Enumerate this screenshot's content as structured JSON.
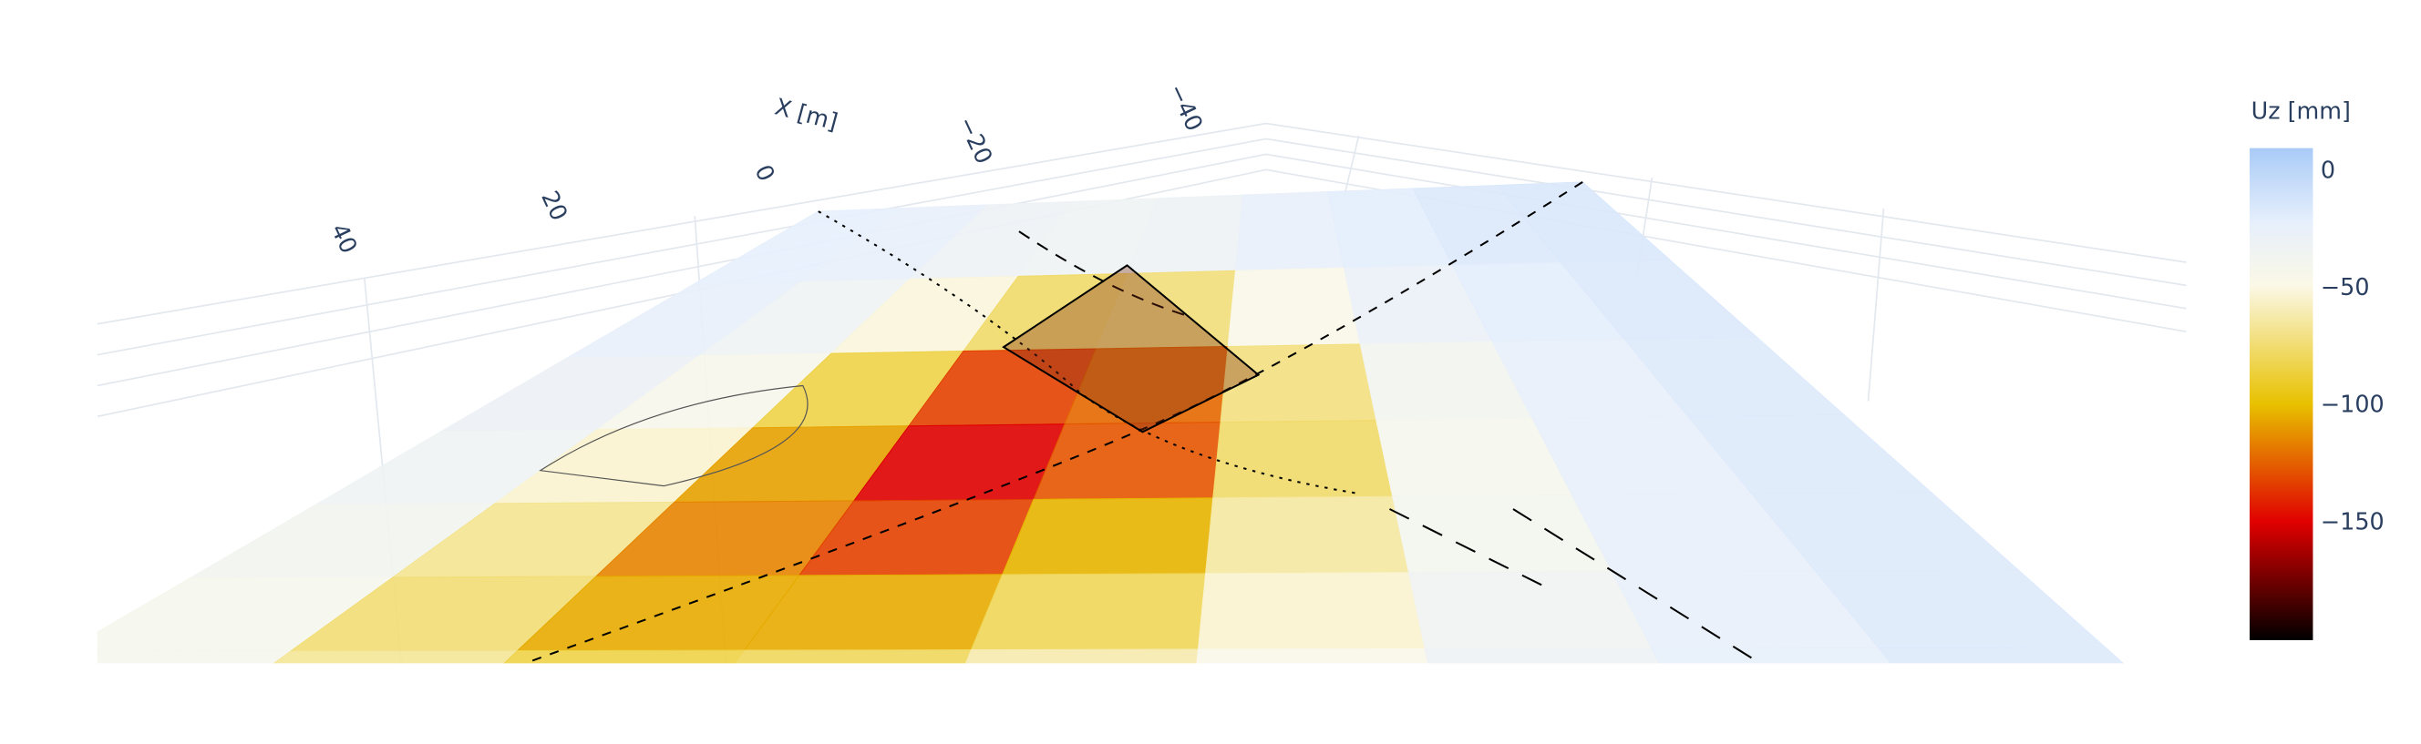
{
  "chart_data": {
    "type": "surface",
    "xaxis_title": "X [m]",
    "xticks": [
      40,
      20,
      0,
      {
        "value": -20,
        "label": "−20"
      },
      {
        "value": -40,
        "label": "−40"
      }
    ],
    "colorbar_title": "Uz [mm]",
    "colorbar_ticks": [
      0,
      {
        "value": -50,
        "label": "−50"
      },
      {
        "value": -100,
        "label": "−100"
      },
      {
        "value": -150,
        "label": "−150"
      }
    ],
    "cmin": -200,
    "cmax": 10,
    "colorscale": [
      [
        0,
        "#000000"
      ],
      [
        0.24,
        "#e00000"
      ],
      [
        0.48,
        "#e8c100"
      ],
      [
        0.72,
        "#fbf8e6"
      ],
      [
        0.85,
        "#e6effc"
      ],
      [
        1,
        "#a9cbf7"
      ]
    ],
    "z": [
      [
        -20,
        -20,
        -25,
        -25,
        -20,
        -20,
        -20,
        -15,
        -15,
        -15
      ],
      [
        -20,
        -25,
        -30,
        -40,
        -45,
        -35,
        -25,
        -20,
        -15,
        -15
      ],
      [
        -25,
        -30,
        -45,
        -90,
        -130,
        -80,
        -40,
        -25,
        -20,
        -15
      ],
      [
        -25,
        -35,
        -60,
        -140,
        -170,
        -110,
        -55,
        -30,
        -20,
        -15
      ],
      [
        -30,
        -40,
        -80,
        -150,
        -140,
        -90,
        -50,
        -30,
        -20,
        -15
      ],
      [
        -30,
        -50,
        -100,
        -130,
        -110,
        -70,
        -45,
        -30,
        -20,
        -15
      ],
      [
        -30,
        -55,
        -90,
        -100,
        -80,
        -60,
        -40,
        -25,
        -20,
        -15
      ],
      [
        -30,
        -50,
        -70,
        -75,
        -60,
        -45,
        -35,
        -25,
        -20,
        -15
      ]
    ]
  }
}
